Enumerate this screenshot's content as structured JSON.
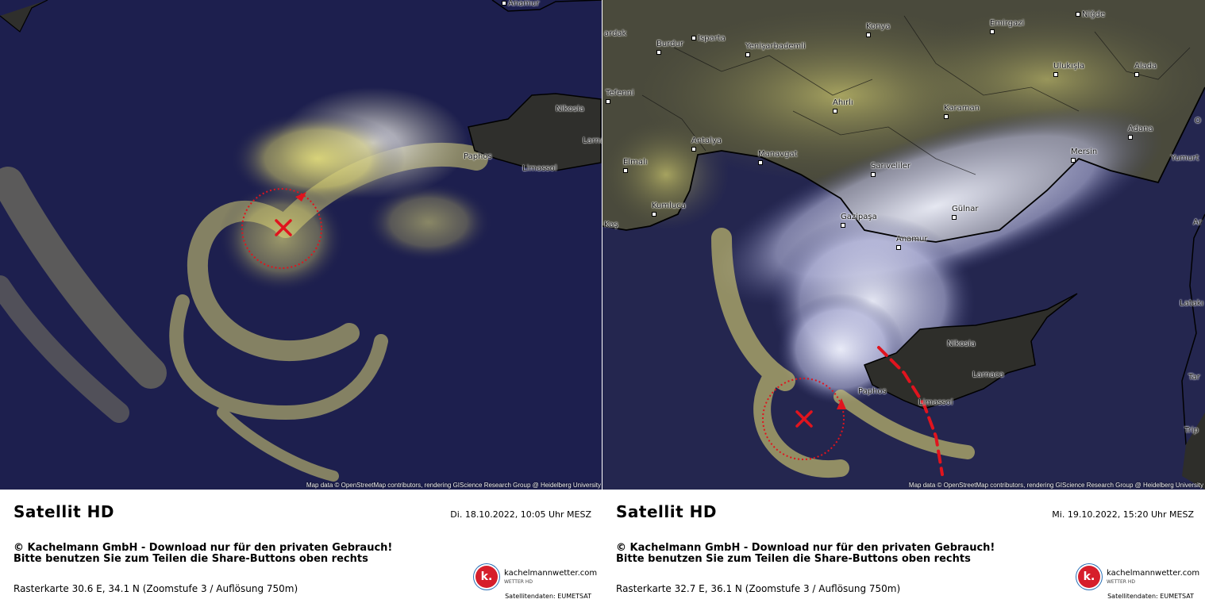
{
  "panels": [
    {
      "title": "Satellit HD",
      "datetime": "Di. 18.10.2022, 10:05 Uhr MESZ",
      "copyright_line1": "© Kachelmann GmbH - Download nur für den privaten Gebrauch!",
      "copyright_line2": "Bitte benutzen Sie zum Teilen die Share-Buttons oben rechts",
      "raster": "Rasterkarte 30.6 E, 34.1 N (Zoomstufe 3 / Auflösung 750m)",
      "attribution": "Map data © OpenStreetMap contributors, rendering GIScience Research Group @ Heidelberg University",
      "logo_name": "kachelmannwetter.com",
      "logo_sub": "WETTER HD",
      "logo_letter": "k.",
      "sat_credit": "Satellitendaten: EUMETSAT",
      "cities": [
        "Anamur",
        "Nikosia",
        "Larna",
        "Paphos",
        "Limassol"
      ]
    },
    {
      "title": "Satellit HD",
      "datetime": "Mi. 19.10.2022, 15:20 Uhr MESZ",
      "copyright_line1": "© Kachelmann GmbH - Download nur für den privaten Gebrauch!",
      "copyright_line2": "Bitte benutzen Sie zum Teilen die Share-Buttons oben rechts",
      "raster": "Rasterkarte 32.7 E, 36.1 N (Zoomstufe 3 / Auflösung 750m)",
      "attribution": "Map data © OpenStreetMap contributors, rendering GIScience Research Group @ Heidelberg University",
      "logo_name": "kachelmannwetter.com",
      "logo_sub": "WETTER HD",
      "logo_letter": "k.",
      "sat_credit": "Satellitendaten: EUMETSAT",
      "cities": [
        "Niğde",
        "Konya",
        "Emirgazi",
        "Burdur",
        "Isparta",
        "Yenişarbademli",
        "Ulukışla",
        "Alada",
        "Tefenni",
        "Ahırlı",
        "Karaman",
        "Adana",
        "Antalya",
        "Manavgat",
        "Mersin",
        "Yumurt",
        "Elmalı",
        "Sarıveliler",
        "Gülnar",
        "Kumluca",
        "Gazipaşa",
        "Kaş",
        "Anamur",
        "Nikosia",
        "Larnaca",
        "Paphos",
        "Limassol",
        "Trip",
        "Latakı",
        "Tar",
        "ardak",
        "Ar",
        "O"
      ]
    }
  ],
  "colors": {
    "sea": "#1d1f4e",
    "cloud_yellow": "#e8e27a",
    "cloud_white": "#e7e9f5",
    "land": "#2e2e2a",
    "marker_red": "#e0141e"
  },
  "icons": [
    "low-pressure-center-icon",
    "rotation-arrow-icon",
    "front-line-icon",
    "kachelmann-logo-icon"
  ]
}
